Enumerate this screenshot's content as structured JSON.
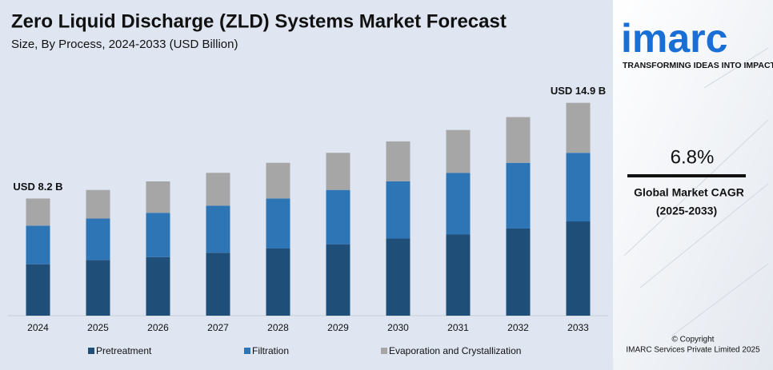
{
  "chart_data": {
    "type": "stacked-bar",
    "title": "Zero Liquid Discharge (ZLD) Systems Market Forecast",
    "subtitle": "Size, By Process, 2024-2033 (USD Billion)",
    "categories": [
      "2024",
      "2025",
      "2026",
      "2027",
      "2028",
      "2029",
      "2030",
      "2031",
      "2032",
      "2033"
    ],
    "series": [
      {
        "name": "Pretreatment",
        "color": "#1f4e79",
        "values": [
          3.6,
          3.9,
          4.1,
          4.4,
          4.7,
          5.0,
          5.4,
          5.7,
          6.1,
          6.6
        ]
      },
      {
        "name": "Filtration",
        "color": "#2e75b6",
        "values": [
          2.7,
          2.9,
          3.1,
          3.3,
          3.5,
          3.8,
          4.0,
          4.3,
          4.6,
          4.8
        ]
      },
      {
        "name": "Evaporation and Crystallization",
        "color": "#a6a6a6",
        "values": [
          1.9,
          2.0,
          2.2,
          2.3,
          2.5,
          2.6,
          2.8,
          3.0,
          3.2,
          3.5
        ]
      }
    ],
    "annotations": [
      {
        "text": "USD 8.2 B",
        "category": 0
      },
      {
        "text": "USD 14.9 B",
        "category": 9
      }
    ],
    "ylim": [
      0,
      16
    ]
  },
  "panel": {
    "logo": "imarc",
    "tagline": "TRANSFORMING IDEAS INTO IMPACT",
    "cagr": "6.8%",
    "cagr_label": "Global Market CAGR",
    "cagr_period": "(2025-2033)",
    "copyright": "© Copyright",
    "company": "IMARC Services Private Limited 2025"
  }
}
